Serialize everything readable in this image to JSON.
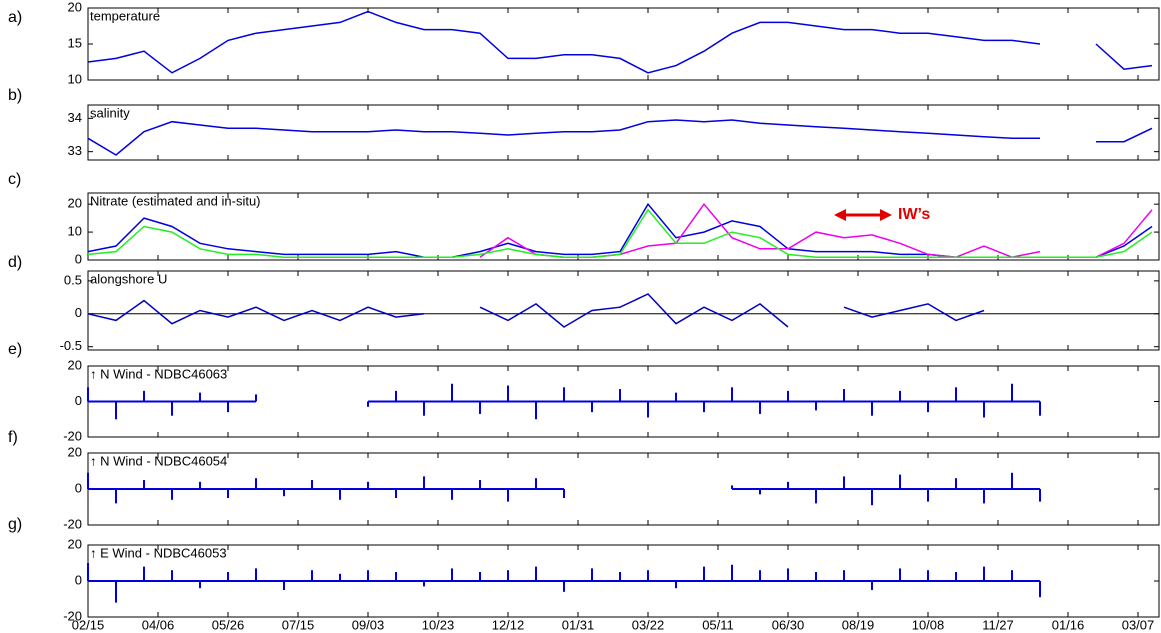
{
  "chart_data": [
    {
      "type": "line",
      "panel_label": "a)",
      "title": "temperature",
      "x": [
        0,
        20,
        40,
        60,
        80,
        100,
        120,
        140,
        160,
        180,
        200,
        220,
        240,
        260,
        280,
        300,
        320,
        340,
        360,
        380,
        400,
        420,
        440,
        460,
        480,
        500,
        520,
        540,
        560,
        580,
        600,
        620,
        640,
        660,
        680,
        700,
        720,
        740,
        760
      ],
      "series": [
        {
          "color": "#0000e0",
          "values": [
            12.5,
            13,
            14,
            11,
            13,
            15.5,
            16.5,
            17,
            17.5,
            18,
            19.5,
            18,
            17,
            17,
            16.5,
            13,
            13,
            13.5,
            13.5,
            13,
            11,
            12,
            14,
            16.5,
            18,
            18,
            17.5,
            17,
            17,
            16.5,
            16.5,
            16,
            15.5,
            15.5,
            15,
            null,
            15,
            11.5,
            12
          ]
        }
      ],
      "xlim": [
        0,
        765
      ],
      "ylim": [
        10,
        20
      ],
      "yticks": [
        10,
        15,
        20
      ]
    },
    {
      "type": "line",
      "panel_label": "b)",
      "title": "salinity",
      "x": [
        0,
        20,
        40,
        60,
        80,
        100,
        120,
        140,
        160,
        180,
        200,
        220,
        240,
        260,
        280,
        300,
        320,
        340,
        360,
        380,
        400,
        420,
        440,
        460,
        480,
        500,
        520,
        540,
        560,
        580,
        600,
        620,
        640,
        660,
        680,
        700,
        720,
        740,
        760
      ],
      "series": [
        {
          "color": "#0000e0",
          "values": [
            33.4,
            32.9,
            33.6,
            33.9,
            33.8,
            33.7,
            33.7,
            33.65,
            33.6,
            33.6,
            33.6,
            33.65,
            33.6,
            33.6,
            33.55,
            33.5,
            33.55,
            33.6,
            33.6,
            33.65,
            33.9,
            33.95,
            33.9,
            33.95,
            33.85,
            33.8,
            33.75,
            33.7,
            33.65,
            33.6,
            33.55,
            33.5,
            33.45,
            33.4,
            33.4,
            null,
            33.3,
            33.3,
            33.7
          ]
        }
      ],
      "xlim": [
        0,
        765
      ],
      "ylim": [
        32.75,
        34.4
      ],
      "yticks": [
        33,
        34
      ]
    },
    {
      "type": "line",
      "panel_label": "c)",
      "title": "Nitrate (estimated and in-situ)",
      "annotation": "IW’s",
      "x": [
        0,
        20,
        40,
        60,
        80,
        100,
        120,
        140,
        160,
        180,
        200,
        220,
        240,
        260,
        280,
        300,
        320,
        340,
        360,
        380,
        400,
        420,
        440,
        460,
        480,
        500,
        520,
        540,
        560,
        580,
        600,
        620,
        640,
        660,
        680,
        700,
        720,
        740,
        760
      ],
      "series": [
        {
          "color": "#0000e0",
          "values": [
            3,
            5,
            15,
            12,
            6,
            4,
            3,
            2,
            2,
            2,
            2,
            3,
            1,
            1,
            3,
            6,
            3,
            2,
            2,
            3,
            20,
            8,
            10,
            14,
            12,
            4,
            3,
            3,
            3,
            2,
            2,
            1,
            1,
            1,
            1,
            null,
            1,
            5,
            12
          ]
        },
        {
          "color": "#ee00ee",
          "values": [
            null,
            null,
            null,
            null,
            null,
            null,
            null,
            null,
            null,
            null,
            null,
            null,
            null,
            null,
            1,
            8,
            2,
            1,
            1,
            2,
            5,
            6,
            20,
            8,
            4,
            4,
            10,
            8,
            9,
            6,
            2,
            1,
            5,
            1,
            3,
            null,
            1,
            6,
            18
          ]
        },
        {
          "color": "#22ee22",
          "values": [
            2,
            3,
            12,
            10,
            4,
            2,
            2,
            1,
            1,
            1,
            1,
            1,
            1,
            1,
            2,
            4,
            2,
            1,
            1,
            2,
            18,
            6,
            6,
            10,
            8,
            2,
            1,
            1,
            1,
            1,
            1,
            1,
            1,
            1,
            1,
            1,
            1,
            3,
            10
          ]
        }
      ],
      "xlim": [
        0,
        765
      ],
      "ylim": [
        0,
        24
      ],
      "yticks": [
        0,
        10,
        20
      ]
    },
    {
      "type": "line",
      "panel_label": "d)",
      "title": "alongshore U",
      "zero_line": true,
      "x": [
        0,
        20,
        40,
        60,
        80,
        100,
        120,
        140,
        160,
        180,
        200,
        220,
        240,
        260,
        280,
        300,
        320,
        340,
        360,
        380,
        400,
        420,
        440,
        460,
        480,
        500,
        520,
        540,
        560,
        580,
        600,
        620,
        640,
        660,
        680,
        700,
        720,
        740,
        760
      ],
      "series": [
        {
          "color": "#0000c0",
          "values": [
            0,
            -0.1,
            0.2,
            -0.15,
            0.05,
            -0.05,
            0.1,
            -0.1,
            0.05,
            -0.1,
            0.1,
            -0.05,
            0,
            null,
            0.1,
            -0.1,
            0.15,
            -0.2,
            0.05,
            0.1,
            0.3,
            -0.15,
            0.1,
            -0.1,
            0.15,
            -0.2,
            null,
            0.1,
            -0.05,
            0.05,
            0.15,
            -0.1,
            0.05,
            null,
            null,
            null,
            null,
            null,
            null
          ]
        }
      ],
      "xlim": [
        0,
        765
      ],
      "ylim": [
        -0.55,
        0.65
      ],
      "yticks": [
        -0.5,
        0,
        0.5
      ]
    },
    {
      "type": "stick",
      "panel_label": "e)",
      "title": "↑ N Wind - NDBC46063",
      "x": [
        0,
        20,
        40,
        60,
        80,
        100,
        120,
        140,
        160,
        180,
        200,
        220,
        240,
        260,
        280,
        300,
        320,
        340,
        360,
        380,
        400,
        420,
        440,
        460,
        480,
        500,
        520,
        540,
        560,
        580,
        600,
        620,
        640,
        660,
        680,
        700,
        720,
        740,
        760
      ],
      "series": [
        {
          "color": "#0000e0",
          "values": [
            8,
            -10,
            6,
            -8,
            5,
            -6,
            4,
            null,
            null,
            null,
            -3,
            6,
            -8,
            10,
            -7,
            9,
            -10,
            8,
            -6,
            7,
            -9,
            5,
            -6,
            8,
            -7,
            6,
            -5,
            7,
            -8,
            6,
            -6,
            8,
            -9,
            10,
            -8,
            null,
            null,
            null,
            null
          ]
        }
      ],
      "xlim": [
        0,
        765
      ],
      "ylim": [
        -20,
        20
      ],
      "yticks": [
        -20,
        0,
        20
      ]
    },
    {
      "type": "stick",
      "panel_label": "f)",
      "title": "↑ N Wind - NDBC46054",
      "x": [
        0,
        20,
        40,
        60,
        80,
        100,
        120,
        140,
        160,
        180,
        200,
        220,
        240,
        260,
        280,
        300,
        320,
        340,
        360,
        380,
        400,
        420,
        440,
        460,
        480,
        500,
        520,
        540,
        560,
        580,
        600,
        620,
        640,
        660,
        680,
        700,
        720,
        740,
        760
      ],
      "series": [
        {
          "color": "#0000e0",
          "values": [
            9,
            -8,
            5,
            -6,
            4,
            -5,
            6,
            -4,
            5,
            -6,
            4,
            -5,
            7,
            -6,
            5,
            -7,
            6,
            -5,
            null,
            null,
            null,
            null,
            null,
            2,
            -3,
            4,
            -8,
            7,
            -9,
            8,
            -7,
            6,
            -8,
            9,
            -7,
            null,
            null,
            null,
            null
          ]
        }
      ],
      "xlim": [
        0,
        765
      ],
      "ylim": [
        -20,
        20
      ],
      "yticks": [
        -20,
        0,
        20
      ]
    },
    {
      "type": "stick",
      "panel_label": "g)",
      "title": "↑ E Wind - NDBC46053",
      "x": [
        0,
        20,
        40,
        60,
        80,
        100,
        120,
        140,
        160,
        180,
        200,
        220,
        240,
        260,
        280,
        300,
        320,
        340,
        360,
        380,
        400,
        420,
        440,
        460,
        480,
        500,
        520,
        540,
        560,
        580,
        600,
        620,
        640,
        660,
        680,
        700,
        720,
        740,
        760
      ],
      "series": [
        {
          "color": "#0000e0",
          "values": [
            10,
            -12,
            8,
            6,
            -4,
            5,
            7,
            -5,
            6,
            4,
            6,
            5,
            -3,
            7,
            5,
            6,
            8,
            -6,
            7,
            5,
            6,
            -4,
            8,
            9,
            6,
            7,
            5,
            6,
            -5,
            7,
            6,
            5,
            8,
            6,
            -9,
            null,
            null,
            null,
            null
          ]
        }
      ],
      "xlim": [
        0,
        765
      ],
      "ylim": [
        -20,
        20
      ],
      "yticks": [
        -20,
        0,
        20
      ],
      "xticks": [
        {
          "value": 0,
          "label": "02/15"
        },
        {
          "value": 50,
          "label": "04/06"
        },
        {
          "value": 100,
          "label": "05/26"
        },
        {
          "value": 150,
          "label": "07/15"
        },
        {
          "value": 200,
          "label": "09/03"
        },
        {
          "value": 250,
          "label": "10/23"
        },
        {
          "value": 300,
          "label": "12/12"
        },
        {
          "value": 350,
          "label": "01/31"
        },
        {
          "value": 400,
          "label": "03/22"
        },
        {
          "value": 450,
          "label": "05/11"
        },
        {
          "value": 500,
          "label": "06/30"
        },
        {
          "value": 550,
          "label": "08/19"
        },
        {
          "value": 600,
          "label": "10/08"
        },
        {
          "value": 650,
          "label": "11/27"
        },
        {
          "value": 700,
          "label": "01/16"
        },
        {
          "value": 750,
          "label": "03/07"
        }
      ]
    }
  ]
}
